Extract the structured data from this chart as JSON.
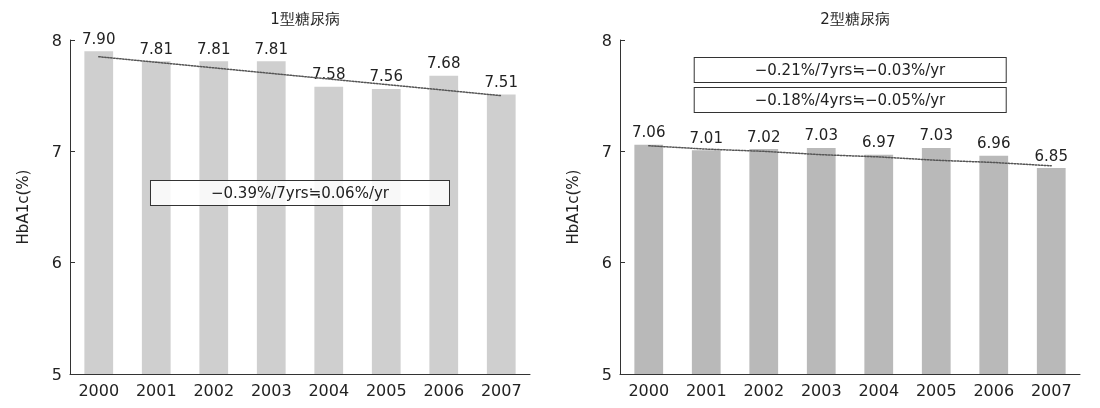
{
  "chart_data": [
    {
      "type": "bar",
      "title": "1型糖尿病",
      "ylabel": "HbA1c(%)",
      "categories": [
        "2000",
        "2001",
        "2002",
        "2003",
        "2004",
        "2005",
        "2006",
        "2007"
      ],
      "ylim": [
        5,
        8
      ],
      "yticks": [
        5,
        6,
        7,
        8
      ],
      "grid": false,
      "annotations": [
        "−0.39%/7yrs≒0.06%/yr"
      ],
      "series": [
        {
          "color": "#cfcfcf",
          "values": [
            7.9,
            7.81,
            7.81,
            7.81,
            7.58,
            7.56,
            7.68,
            7.51
          ],
          "value_labels": [
            "7.90",
            "7.81",
            "7.81",
            "7.81",
            "7.58",
            "7.56",
            "7.68",
            "7.51"
          ]
        },
        {
          "type": "line",
          "values": [
            7.85,
            7.8,
            7.75,
            7.7,
            7.65,
            7.6,
            7.55,
            7.5
          ],
          "color": "#555555",
          "line_style": "dotted",
          "marker": "none"
        }
      ]
    },
    {
      "type": "bar",
      "title": "2型糖尿病",
      "ylabel": "HbA1c(%)",
      "categories": [
        "2000",
        "2001",
        "2002",
        "2003",
        "2004",
        "2005",
        "2006",
        "2007"
      ],
      "ylim": [
        5,
        8
      ],
      "yticks": [
        5,
        6,
        7,
        8
      ],
      "grid": false,
      "annotations": [
        "−0.21%/7yrs≒−0.03%/yr",
        "−0.18%/4yrs≒−0.05%/yr"
      ],
      "series": [
        {
          "color": "#b9b9b9",
          "values": [
            7.06,
            7.01,
            7.02,
            7.03,
            6.97,
            7.03,
            6.96,
            6.85
          ],
          "value_labels": [
            "7.06",
            "7.01",
            "7.02",
            "7.03",
            "6.97",
            "7.03",
            "6.96",
            "6.85"
          ]
        },
        {
          "type": "line",
          "values": [
            7.05,
            7.02,
            7.0,
            6.97,
            6.95,
            6.92,
            6.9,
            6.87
          ],
          "color": "#555555",
          "line_style": "dotted",
          "marker": "none"
        }
      ]
    }
  ]
}
